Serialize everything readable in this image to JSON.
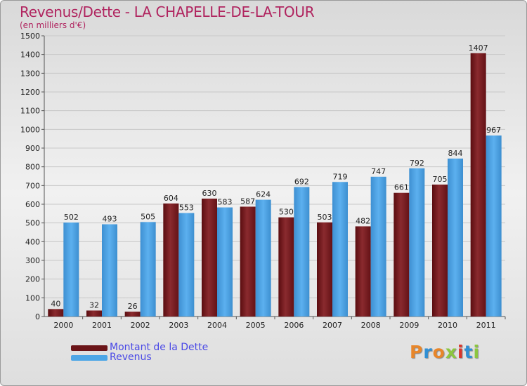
{
  "chart_data": {
    "type": "bar",
    "title": "Revenus/Dette - LA CHAPELLE-DE-LA-TOUR",
    "subtitle": "(en milliers d'€)",
    "categories": [
      "2000",
      "2001",
      "2002",
      "2003",
      "2004",
      "2005",
      "2006",
      "2007",
      "2008",
      "2009",
      "2010",
      "2011"
    ],
    "series": [
      {
        "name": "Montant de la Dette",
        "color": "#7a1a1e",
        "values": [
          40,
          32,
          26,
          604,
          630,
          587,
          530,
          503,
          482,
          661,
          705,
          1407
        ]
      },
      {
        "name": "Revenus",
        "color": "#4ea6e6",
        "values": [
          502,
          493,
          505,
          553,
          583,
          624,
          692,
          719,
          747,
          792,
          844,
          967
        ]
      }
    ],
    "ylim": [
      0,
      1500
    ],
    "yticks": [
      0,
      100,
      200,
      300,
      400,
      500,
      600,
      700,
      800,
      900,
      1000,
      1100,
      1200,
      1300,
      1400,
      1500
    ],
    "xlabel": "",
    "ylabel": "",
    "grid": true,
    "legend": "bottom-left"
  },
  "legend": {
    "debt_label": "Montant de la Dette",
    "revenue_label": "Revenus"
  },
  "logo": {
    "letters": [
      "P",
      "r",
      "o",
      "x",
      "i",
      "t",
      "i"
    ],
    "colors": [
      "#e8862a",
      "#2f8fd4",
      "#e8862a",
      "#8cc63f",
      "#d9352b",
      "#2f8fd4",
      "#8cc63f"
    ]
  }
}
